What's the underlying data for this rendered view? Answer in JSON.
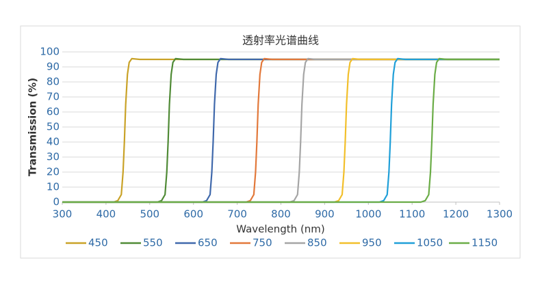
{
  "chart_data": {
    "type": "line",
    "title": "透射率光谱曲线",
    "x_label": "Wavelength (nm)",
    "y_label": "Transmission (%)",
    "xlim": [
      300,
      1300
    ],
    "xticks": [
      300,
      400,
      500,
      600,
      700,
      800,
      900,
      1000,
      1100,
      1200,
      1300
    ],
    "ylim": [
      0,
      100
    ],
    "yticks": [
      0,
      10,
      20,
      30,
      40,
      50,
      60,
      70,
      80,
      90,
      100
    ],
    "grid": true,
    "legend": "bottom",
    "series": [
      {
        "name": "450",
        "color": "#c9a227",
        "x": [
          300,
          417,
          427,
          435,
          439,
          442,
          445,
          449,
          453,
          459,
          477,
          1300
        ],
        "values": [
          0,
          0,
          1,
          5,
          20,
          40,
          65,
          85,
          93,
          95.5,
          95,
          95
        ]
      },
      {
        "name": "550",
        "color": "#4f8a35",
        "x": [
          300,
          517,
          527,
          535,
          539,
          542,
          545,
          549,
          553,
          559,
          577,
          1300
        ],
        "values": [
          0,
          0,
          1,
          5,
          20,
          40,
          65,
          85,
          93,
          95.5,
          95,
          95
        ]
      },
      {
        "name": "650",
        "color": "#3f68ab",
        "x": [
          300,
          620,
          630,
          638,
          642,
          645,
          648,
          652,
          656,
          662,
          680,
          1300
        ],
        "values": [
          0,
          0,
          1,
          5,
          20,
          40,
          65,
          85,
          93,
          95.5,
          95,
          95
        ]
      },
      {
        "name": "750",
        "color": "#e2783a",
        "x": [
          300,
          720,
          730,
          738,
          742,
          745,
          748,
          752,
          756,
          762,
          780,
          1300
        ],
        "values": [
          0,
          0,
          1,
          5,
          20,
          40,
          65,
          85,
          93,
          95.5,
          95,
          95
        ]
      },
      {
        "name": "850",
        "color": "#a5a5a5",
        "x": [
          300,
          820,
          830,
          838,
          842,
          845,
          848,
          852,
          856,
          862,
          880,
          1300
        ],
        "values": [
          0,
          0,
          1,
          5,
          20,
          40,
          65,
          85,
          93,
          95.5,
          95,
          95
        ]
      },
      {
        "name": "950",
        "color": "#f2bf2a",
        "x": [
          300,
          922,
          932,
          940,
          944,
          947,
          950,
          954,
          958,
          964,
          982,
          1300
        ],
        "values": [
          0,
          0,
          1,
          5,
          20,
          40,
          65,
          85,
          93,
          95.5,
          95,
          95
        ]
      },
      {
        "name": "1050",
        "color": "#1f9fd8",
        "x": [
          300,
          1025,
          1035,
          1043,
          1047,
          1050,
          1053,
          1057,
          1061,
          1067,
          1085,
          1300
        ],
        "values": [
          0,
          0,
          1,
          5,
          20,
          40,
          65,
          85,
          93,
          95.5,
          95,
          95
        ]
      },
      {
        "name": "1150",
        "color": "#6aac46",
        "x": [
          300,
          1120,
          1130,
          1138,
          1142,
          1145,
          1148,
          1152,
          1156,
          1162,
          1180,
          1300
        ],
        "values": [
          0,
          0,
          1,
          5,
          20,
          40,
          65,
          85,
          93,
          95.5,
          95,
          95
        ]
      }
    ]
  }
}
